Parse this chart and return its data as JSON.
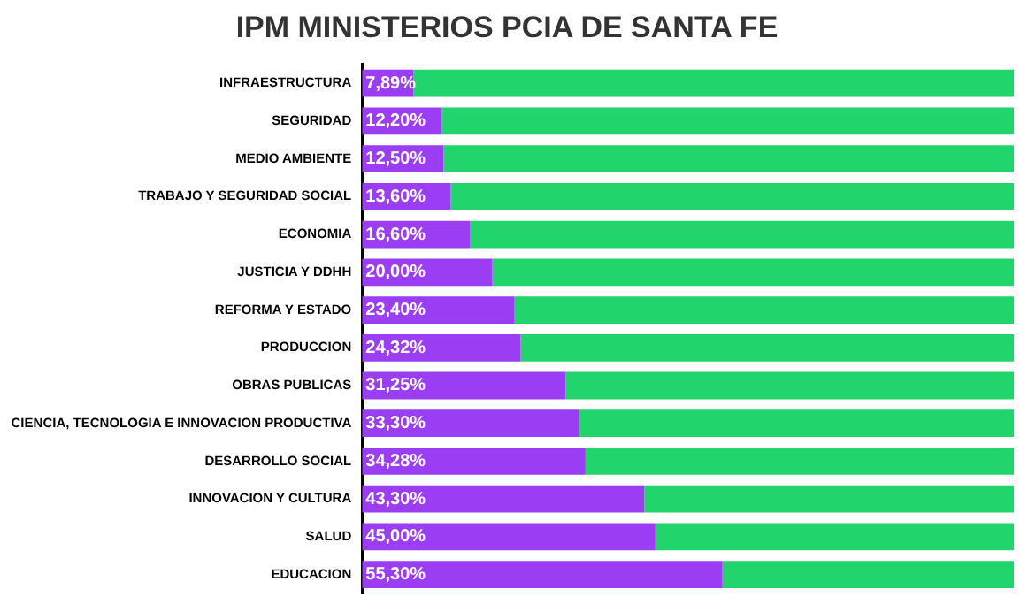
{
  "chart_data": {
    "type": "bar",
    "orientation": "horizontal",
    "stacked": true,
    "title": "IPM MINISTERIOS PCIA DE SANTA FE",
    "categories": [
      "INFRAESTRUCTURA",
      "SEGURIDAD",
      "MEDIO AMBIENTE",
      "TRABAJO Y SEGURIDAD SOCIAL",
      "ECONOMIA",
      "JUSTICIA Y DDHH",
      "REFORMA Y ESTADO",
      "PRODUCCION",
      "OBRAS PUBLICAS",
      "CIENCIA, TECNOLOGIA E INNOVACION PRODUCTIVA",
      "DESARROLLO SOCIAL",
      "INNOVACION Y CULTURA",
      "SALUD",
      "EDUCACION"
    ],
    "series": [
      {
        "color": "#9b3df2",
        "values": [
          7.89,
          12.2,
          12.5,
          13.6,
          16.6,
          20,
          23.4,
          24.32,
          31.25,
          33.3,
          34.28,
          43.3,
          45,
          55.3
        ],
        "value_labels": [
          "7,89%",
          "12,20%",
          "12,50%",
          "13,60%",
          "16,60%",
          "20,00%",
          "23,40%",
          "24,32%",
          "31,25%",
          "33,30%",
          "34,28%",
          "43,30%",
          "45,00%",
          "55,30%"
        ]
      },
      {
        "color": "#21d46b",
        "values": [
          92.11,
          87.8,
          87.5,
          86.4,
          83.4,
          80,
          76.6,
          75.68,
          68.75,
          66.7,
          65.72,
          56.7,
          55,
          44.7
        ]
      }
    ],
    "xlim": [
      0,
      100
    ],
    "tick_labels": "y",
    "grid": false,
    "legend": false
  }
}
